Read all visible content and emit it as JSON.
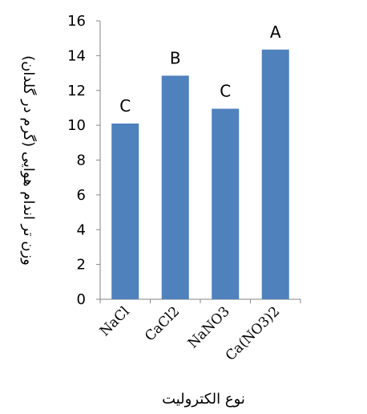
{
  "chart_data": {
    "type": "bar",
    "title": "",
    "xlabel": "نوع الکترولیت",
    "ylabel": "وزن تر اندام هوایی (گرم در گلدان)",
    "categories": [
      "NaCl",
      "CaCl2",
      "NaNO3",
      "Ca(NO3)2"
    ],
    "values": [
      10.1,
      12.85,
      10.95,
      14.35
    ],
    "significance_letters": [
      "C",
      "B",
      "C",
      "A"
    ],
    "ylim": [
      0,
      16
    ],
    "yticks": [
      0,
      2,
      4,
      6,
      8,
      10,
      12,
      14,
      16
    ],
    "grid": false,
    "legend": "none",
    "bar_color": "#4F81BD",
    "axis_color": "#868686"
  }
}
